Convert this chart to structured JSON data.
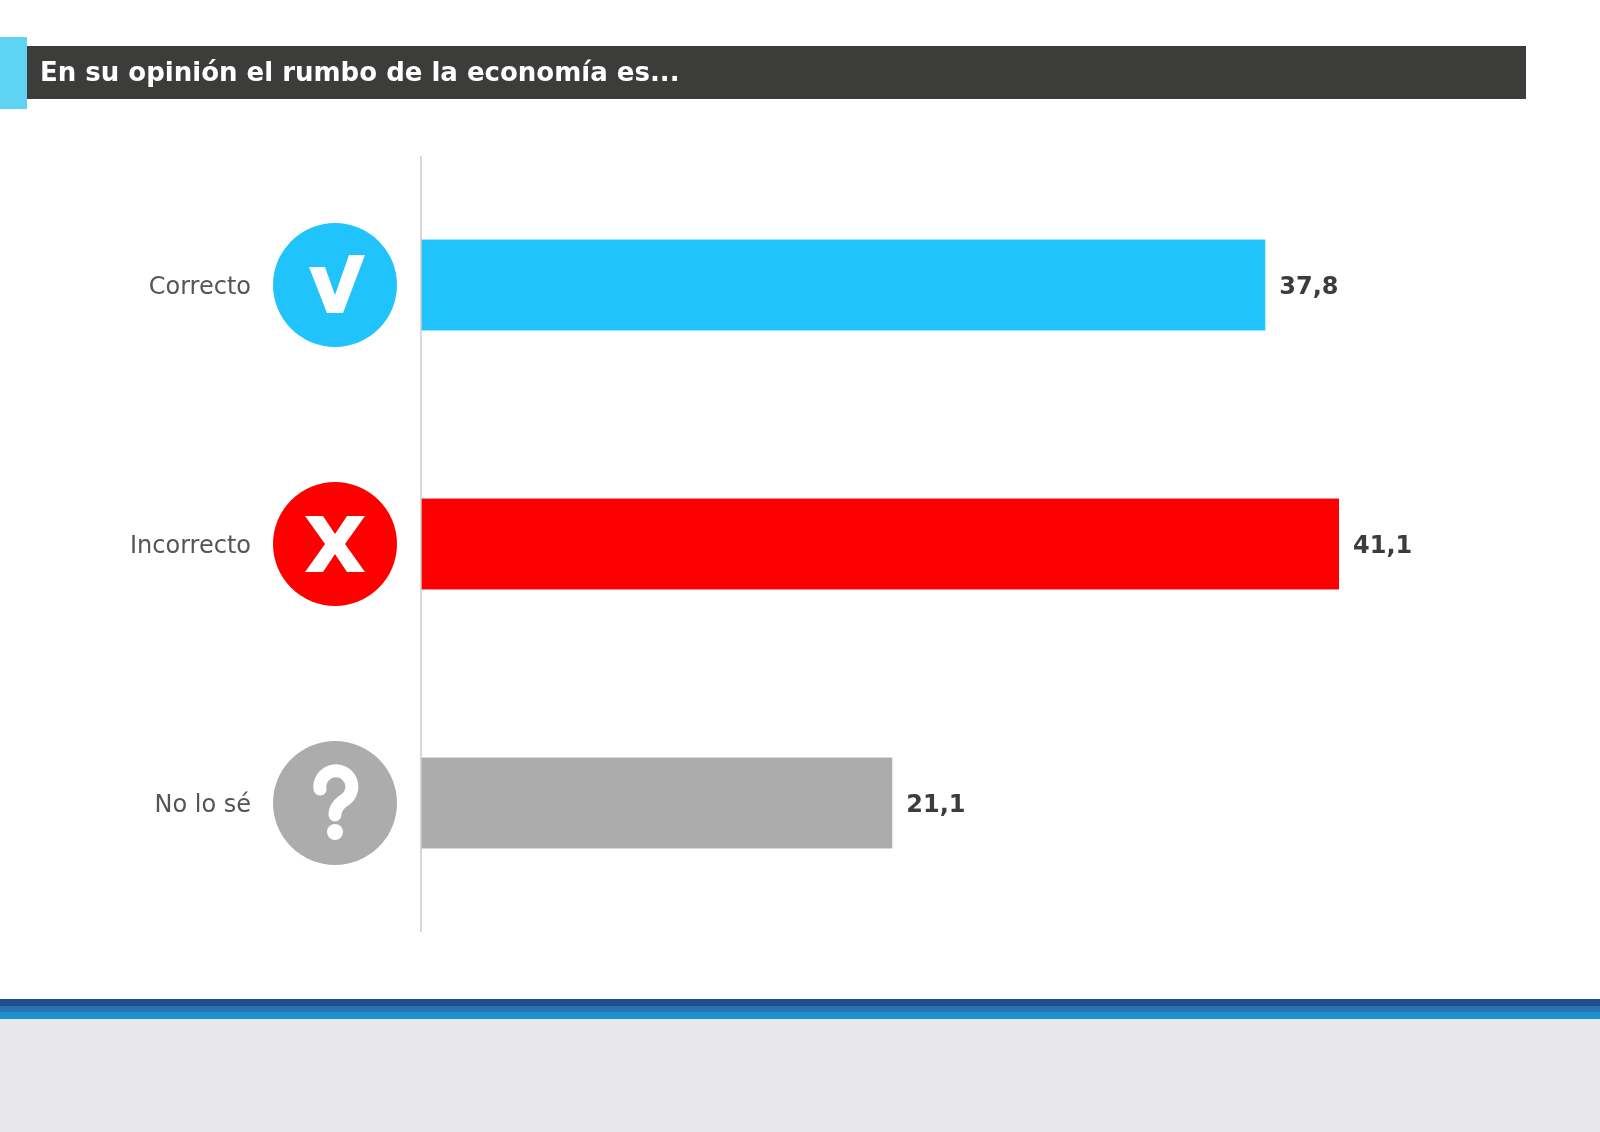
{
  "chart_data": {
    "type": "bar",
    "orientation": "horizontal",
    "title": "En su opinión el rumbo de la economía es...",
    "categories": [
      "Correcto",
      "Incorrecto",
      "No lo sé"
    ],
    "values": [
      37.8,
      41.1,
      21.1
    ],
    "colors": [
      "#21c3fd",
      "#fe0000",
      "#adacad"
    ],
    "value_labels": [
      "37,8",
      "41,1",
      "21,1"
    ]
  }
}
